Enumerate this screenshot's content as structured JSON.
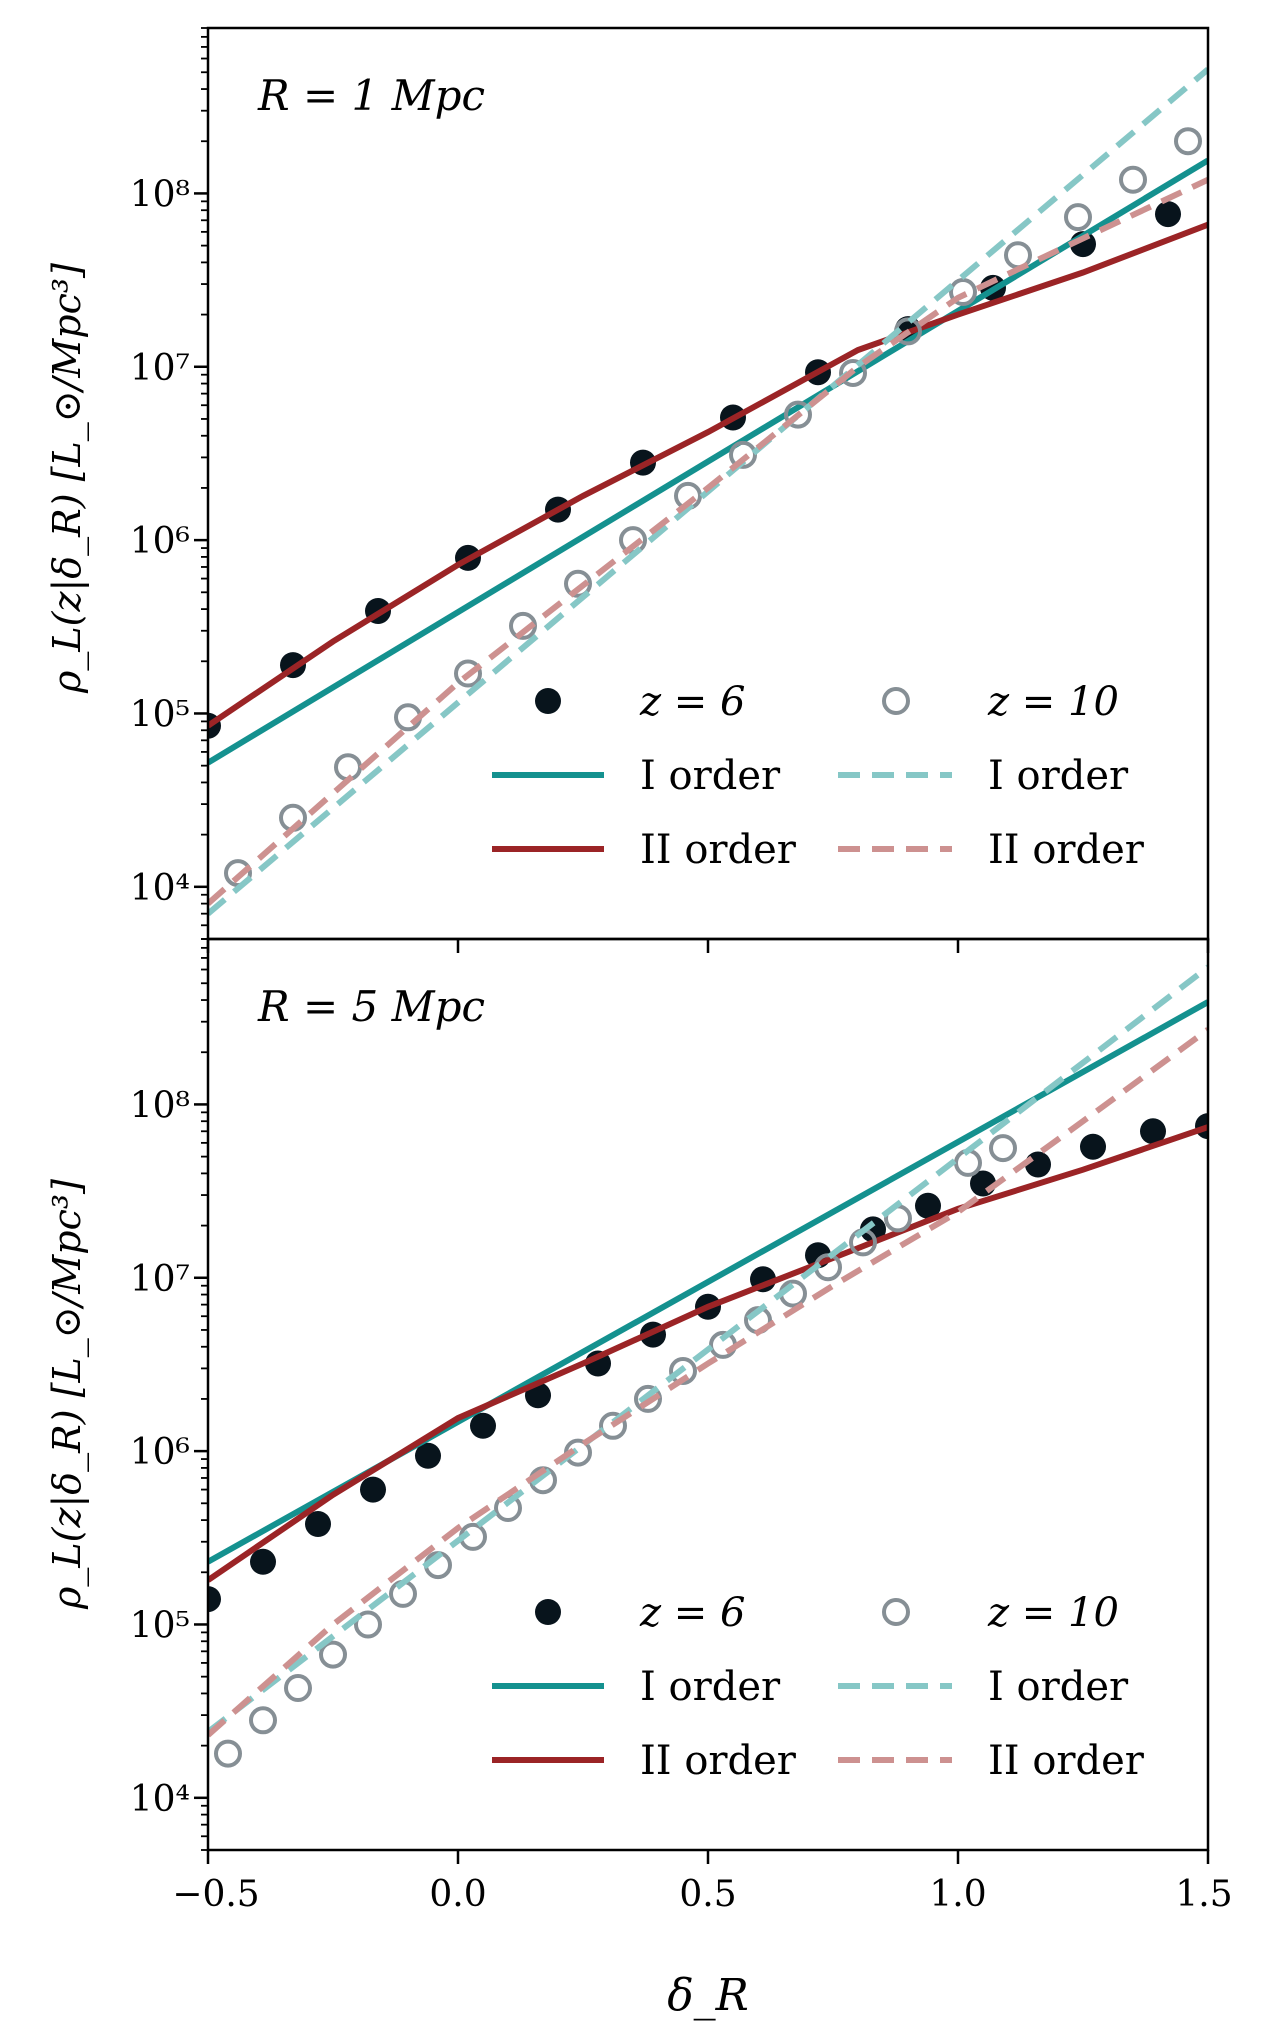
{
  "figure": {
    "xlabel": "δ_R",
    "ylabel": "ρ_L(z|δ_R) [L_⊙/Mpc³]"
  },
  "legend_labels": {
    "z6": "z = 6",
    "z10": "z = 10",
    "first_z6": "I order",
    "second_z6": "II order",
    "first_z10": "I order",
    "second_z10": "II order"
  },
  "colors": {
    "z6_points": "#08141c",
    "z10_points": "#868f95",
    "first_order_z6": "#14918f",
    "second_order_z6": "#9b2426",
    "first_order_z10": "#86c7c6",
    "second_order_z10": "#cd9190"
  },
  "chart_data": [
    {
      "type": "scatter",
      "annotation": "R = 1 Mpc",
      "xlim": [
        -0.5,
        1.5
      ],
      "ylim": [
        5000,
        900000000
      ],
      "yscale": "log",
      "xticks": [
        "−0.5",
        "0.0",
        "0.5",
        "1.0",
        "1.5"
      ],
      "yticks": [
        {
          "value": 10000,
          "label": "10⁴"
        },
        {
          "value": 100000,
          "label": "10⁵"
        },
        {
          "value": 1000000,
          "label": "10⁶"
        },
        {
          "value": 10000000,
          "label": "10⁷"
        },
        {
          "value": 100000000,
          "label": "10⁸"
        }
      ],
      "legend_position": "lower right",
      "series": [
        {
          "name": "z = 6",
          "kind": "points",
          "color_key": "z6_points",
          "filled": true,
          "x": [
            -0.5,
            -0.33,
            -0.16,
            0.02,
            0.2,
            0.37,
            0.55,
            0.72,
            0.9,
            1.07,
            1.25,
            1.42
          ],
          "y": [
            85000,
            190000,
            390000,
            790000,
            1500000,
            2800000,
            5100000,
            9300000,
            16500000,
            28500000,
            51000000,
            76000000
          ]
        },
        {
          "name": "I order",
          "kind": "line",
          "color_key": "first_order_z6",
          "dashed": false,
          "x": [
            -0.5,
            1.5
          ],
          "y": [
            52000,
            155000000
          ]
        },
        {
          "name": "II order",
          "kind": "line",
          "color_key": "second_order_z6",
          "dashed": false,
          "x": [
            -0.5,
            -0.25,
            0.0,
            0.25,
            0.5,
            0.8,
            1.0,
            1.25,
            1.5
          ],
          "y": [
            85000,
            260000,
            720000,
            1800000,
            4200000,
            12500000,
            20000000,
            35000000,
            66000000
          ]
        },
        {
          "name": "z = 10",
          "kind": "points",
          "color_key": "z10_points",
          "filled": false,
          "x": [
            -0.44,
            -0.33,
            -0.22,
            -0.1,
            0.02,
            0.13,
            0.24,
            0.35,
            0.46,
            0.57,
            0.68,
            0.79,
            0.9,
            1.01,
            1.12,
            1.24,
            1.35,
            1.46
          ],
          "y": [
            12000,
            25000,
            49000,
            95000,
            170000,
            320000,
            560000,
            1000000,
            1800000,
            3100000,
            5300000,
            9200000,
            16000000,
            27000000,
            44000000,
            73000000,
            120000000,
            200000000
          ]
        },
        {
          "name": "I order",
          "kind": "line",
          "color_key": "first_order_z10",
          "dashed": true,
          "x": [
            -0.5,
            1.5
          ],
          "y": [
            7000,
            520000000
          ]
        },
        {
          "name": "II order",
          "kind": "line",
          "color_key": "second_order_z10",
          "dashed": true,
          "x": [
            -0.5,
            0.0,
            0.5,
            0.8,
            1.0,
            1.25,
            1.5
          ],
          "y": [
            8000,
            150000,
            2000000,
            10000000,
            25000000,
            55000000,
            120000000
          ]
        }
      ]
    },
    {
      "type": "scatter",
      "annotation": "R = 5 Mpc",
      "xlim": [
        -0.5,
        1.5
      ],
      "ylim": [
        5000,
        900000000
      ],
      "yscale": "log",
      "xticks": [
        "−0.5",
        "0.0",
        "0.5",
        "1.0",
        "1.5"
      ],
      "yticks": [
        {
          "value": 10000,
          "label": "10⁴"
        },
        {
          "value": 100000,
          "label": "10⁵"
        },
        {
          "value": 1000000,
          "label": "10⁶"
        },
        {
          "value": 10000000,
          "label": "10⁷"
        },
        {
          "value": 100000000,
          "label": "10⁸"
        }
      ],
      "legend_position": "lower right",
      "series": [
        {
          "name": "z = 6",
          "kind": "points",
          "color_key": "z6_points",
          "filled": true,
          "x": [
            -0.5,
            -0.39,
            -0.28,
            -0.17,
            -0.06,
            0.05,
            0.16,
            0.28,
            0.39,
            0.5,
            0.61,
            0.72,
            0.83,
            0.94,
            1.05,
            1.16,
            1.27,
            1.39,
            1.5
          ],
          "y": [
            140000,
            230000,
            380000,
            600000,
            940000,
            1400000,
            2100000,
            3200000,
            4700000,
            6800000,
            9800000,
            13500000,
            19000000,
            26000000,
            35000000,
            45000000,
            57000000,
            70000000,
            75000000
          ]
        },
        {
          "name": "I order",
          "kind": "line",
          "color_key": "first_order_z6",
          "dashed": false,
          "x": [
            -0.5,
            1.5
          ],
          "y": [
            230000,
            390000000
          ]
        },
        {
          "name": "II order",
          "kind": "line",
          "color_key": "second_order_z6",
          "dashed": false,
          "x": [
            -0.5,
            -0.25,
            0.0,
            0.25,
            0.5,
            0.75,
            1.0,
            1.25,
            1.5
          ],
          "y": [
            180000,
            560000,
            1550000,
            3200000,
            6800000,
            13000000,
            25000000,
            42000000,
            74000000
          ]
        },
        {
          "name": "z = 10",
          "kind": "points",
          "color_key": "z10_points",
          "filled": false,
          "x": [
            -0.46,
            -0.39,
            -0.32,
            -0.25,
            -0.18,
            -0.11,
            -0.04,
            0.03,
            0.1,
            0.17,
            0.24,
            0.31,
            0.38,
            0.45,
            0.53,
            0.6,
            0.67,
            0.74,
            0.81,
            0.88,
            1.02,
            1.09
          ],
          "y": [
            18000,
            28000,
            43000,
            67000,
            100000,
            150000,
            220000,
            320000,
            470000,
            680000,
            980000,
            1400000,
            2000000,
            2900000,
            4100000,
            5700000,
            8100000,
            11500000,
            16000000,
            22000000,
            46000000,
            56000000
          ]
        },
        {
          "name": "I order",
          "kind": "line",
          "color_key": "first_order_z10",
          "dashed": true,
          "x": [
            -0.5,
            1.5
          ],
          "y": [
            24000,
            620000000
          ]
        },
        {
          "name": "II order",
          "kind": "line",
          "color_key": "second_order_z10",
          "dashed": true,
          "x": [
            -0.5,
            -0.25,
            0.0,
            0.25,
            0.5,
            0.75,
            1.0,
            1.25,
            1.5
          ],
          "y": [
            23000,
            100000,
            360000,
            1100000,
            3200000,
            9000000,
            24000000,
            80000000,
            270000000
          ]
        }
      ]
    }
  ]
}
